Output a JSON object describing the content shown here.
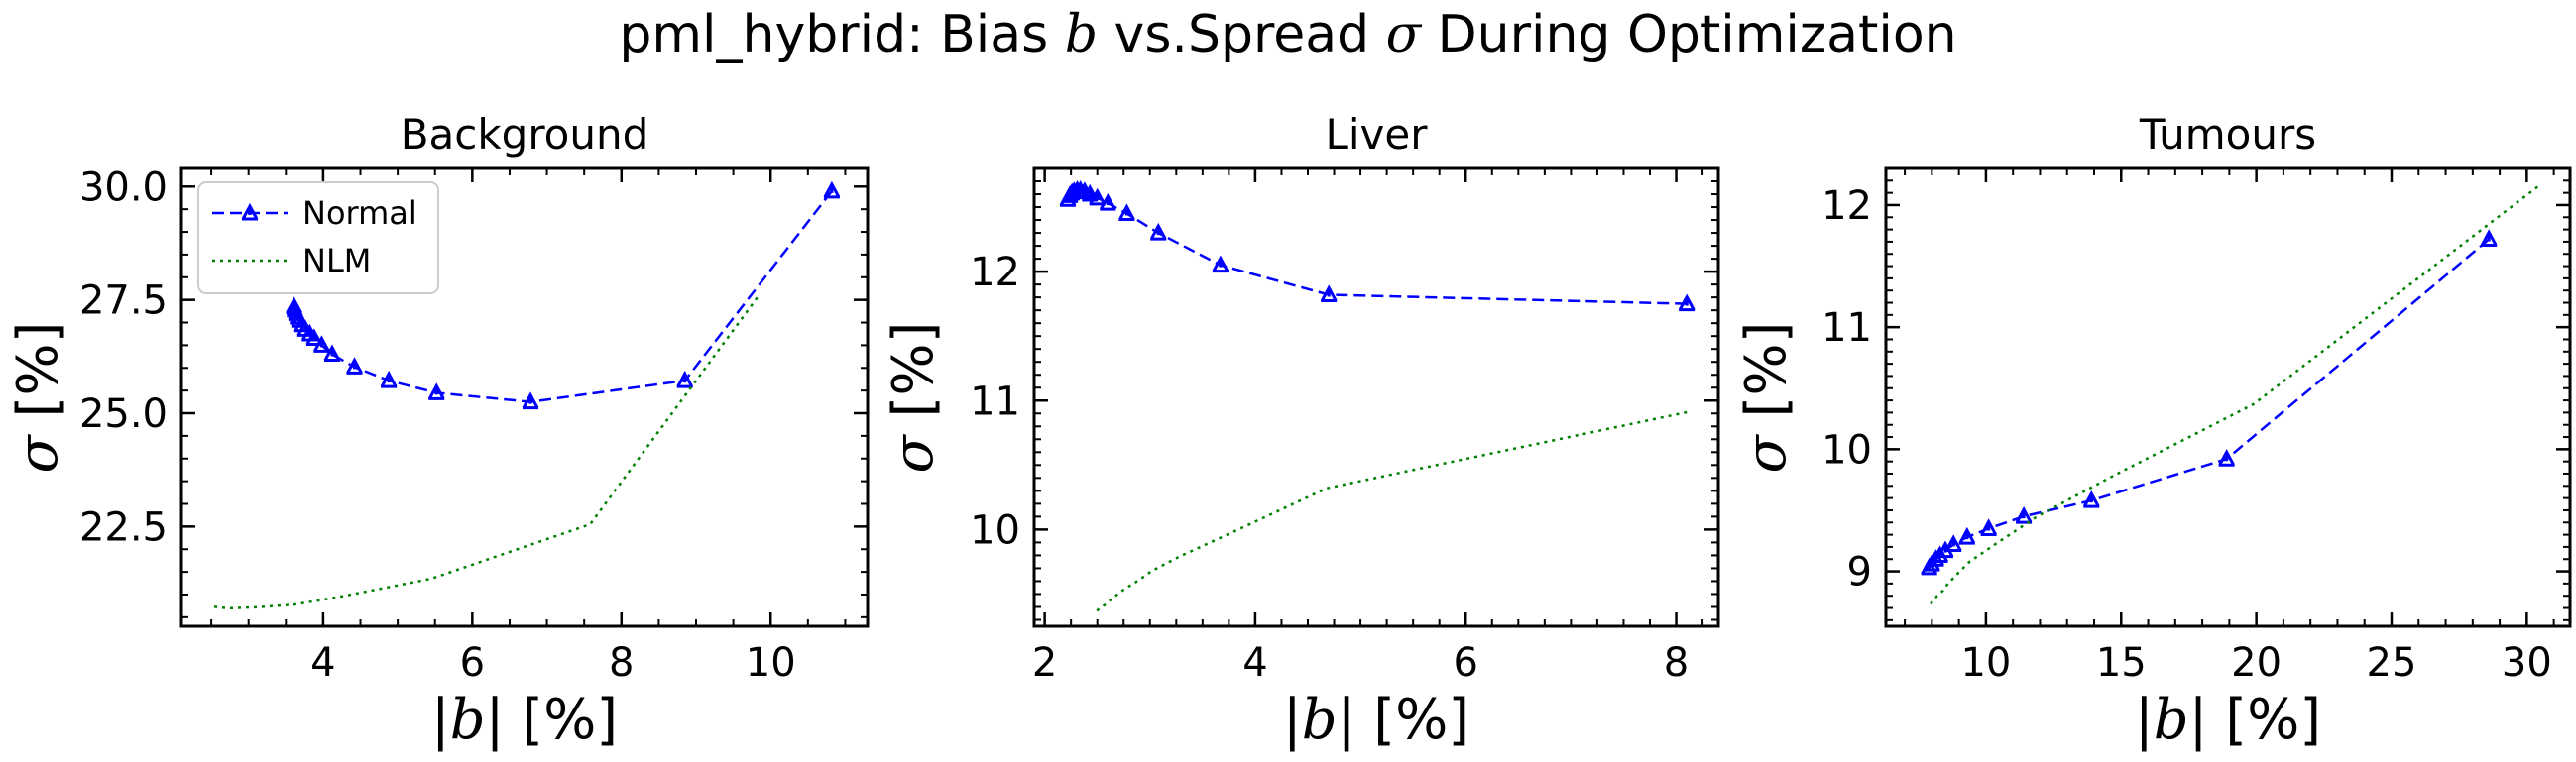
{
  "figure": {
    "title_prefix": "pml_hybrid: Bias ",
    "title_var_b": "b",
    "title_mid": " vs.Spread ",
    "title_var_sigma": "σ",
    "title_suffix": " During Optimization"
  },
  "axis_text": {
    "x_pre": "|",
    "x_var": "b",
    "x_post": "| [%]",
    "y_var": "σ",
    "y_post": " [%]"
  },
  "colors": {
    "normal": "#0000ff",
    "nlm": "#008000"
  },
  "chart_data": [
    {
      "type": "line",
      "title": "Background",
      "xlabel": "|b| [%]",
      "ylabel": "σ [%]",
      "xlim": [
        2.1,
        11.3
      ],
      "ylim": [
        20.3,
        30.4
      ],
      "xticks": [
        4,
        6,
        8,
        10
      ],
      "yticks": [
        22.5,
        25.0,
        27.5,
        30.0
      ],
      "ytick_labels": [
        "22.5",
        "25.0",
        "27.5",
        "30.0"
      ],
      "xminor": 0.5,
      "yminor": 0.5,
      "legend": "top-left",
      "series": [
        {
          "name": "Normal",
          "style": "dashed",
          "x": [
            10.82,
            8.85,
            6.78,
            5.52,
            4.88,
            4.42,
            4.12,
            3.98,
            3.88,
            3.82,
            3.76,
            3.72,
            3.68,
            3.66,
            3.64,
            3.62,
            3.61
          ],
          "y": [
            29.9,
            25.72,
            25.25,
            25.45,
            25.72,
            26.02,
            26.3,
            26.5,
            26.65,
            26.75,
            26.85,
            26.95,
            27.05,
            27.12,
            27.2,
            27.28,
            27.35
          ]
        },
        {
          "name": "NLM",
          "style": "dotted",
          "x": [
            9.82,
            7.58,
            5.45,
            4.22,
            3.62,
            3.12,
            2.95,
            2.82,
            2.72,
            2.64,
            2.58,
            2.52,
            2.48
          ],
          "y": [
            27.55,
            22.55,
            21.35,
            20.95,
            20.78,
            20.72,
            20.71,
            20.7,
            20.7,
            20.71,
            20.72,
            20.74,
            20.77
          ]
        }
      ]
    },
    {
      "type": "line",
      "title": "Liver",
      "xlabel": "|b| [%]",
      "ylabel": "σ [%]",
      "xlim": [
        1.9,
        8.4
      ],
      "ylim": [
        9.25,
        12.8
      ],
      "xticks": [
        2,
        4,
        6,
        8
      ],
      "yticks": [
        10,
        11,
        12
      ],
      "ytick_labels": [
        "10",
        "11",
        "12"
      ],
      "xminor": 0.25,
      "yminor": 0.1,
      "series": [
        {
          "name": "Normal",
          "style": "dashed",
          "x": [
            8.1,
            4.7,
            3.67,
            3.08,
            2.78,
            2.6,
            2.5,
            2.43,
            2.38,
            2.34,
            2.31,
            2.28,
            2.26,
            2.24,
            2.22
          ],
          "y": [
            11.75,
            11.82,
            12.05,
            12.3,
            12.45,
            12.53,
            12.57,
            12.6,
            12.62,
            12.63,
            12.63,
            12.62,
            12.61,
            12.59,
            12.56
          ]
        },
        {
          "name": "NLM",
          "style": "dotted",
          "x": [
            8.1,
            4.68,
            3.76,
            3.28,
            3.02,
            2.88,
            2.76,
            2.68,
            2.62,
            2.58,
            2.54,
            2.51,
            2.48
          ],
          "y": [
            10.91,
            10.32,
            9.97,
            9.79,
            9.68,
            9.6,
            9.54,
            9.49,
            9.45,
            9.42,
            9.4,
            9.38,
            9.36
          ]
        }
      ]
    },
    {
      "type": "line",
      "title": "Tumours",
      "xlabel": "|b| [%]",
      "ylabel": "σ [%]",
      "xlim": [
        6.3,
        31.6
      ],
      "ylim": [
        8.55,
        12.3
      ],
      "xticks": [
        10,
        15,
        20,
        25,
        30
      ],
      "yticks": [
        9,
        10,
        11,
        12
      ],
      "ytick_labels": [
        "9",
        "10",
        "11",
        "12"
      ],
      "xminor": 1,
      "yminor": 0.1,
      "series": [
        {
          "name": "Normal",
          "style": "dashed",
          "x": [
            28.6,
            18.9,
            13.9,
            11.4,
            10.1,
            9.3,
            8.8,
            8.5,
            8.3,
            8.15,
            8.0,
            7.9
          ],
          "y": [
            11.72,
            9.92,
            9.58,
            9.45,
            9.35,
            9.28,
            9.22,
            9.17,
            9.13,
            9.1,
            9.06,
            9.03
          ]
        },
        {
          "name": "NLM",
          "style": "dotted",
          "x": [
            30.4,
            19.9,
            14.6,
            11.9,
            10.4,
            9.4,
            8.9,
            8.6,
            8.4,
            8.2,
            8.05,
            7.95,
            7.88
          ],
          "y": [
            12.15,
            10.37,
            9.77,
            9.45,
            9.23,
            9.08,
            8.97,
            8.9,
            8.84,
            8.8,
            8.76,
            8.73,
            8.7
          ]
        }
      ]
    }
  ]
}
